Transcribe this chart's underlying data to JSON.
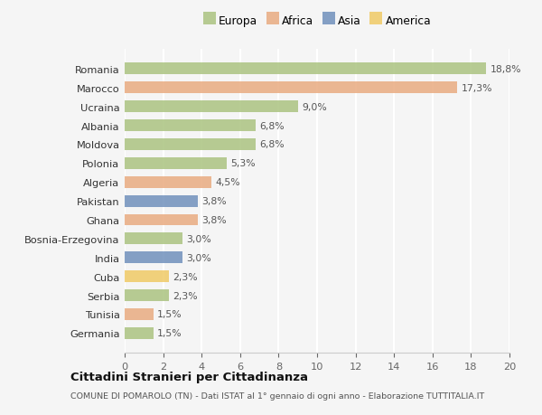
{
  "countries": [
    "Romania",
    "Marocco",
    "Ucraina",
    "Albania",
    "Moldova",
    "Polonia",
    "Algeria",
    "Pakistan",
    "Ghana",
    "Bosnia-Erzegovina",
    "India",
    "Cuba",
    "Serbia",
    "Tunisia",
    "Germania"
  ],
  "values": [
    18.8,
    17.3,
    9.0,
    6.8,
    6.8,
    5.3,
    4.5,
    3.8,
    3.8,
    3.0,
    3.0,
    2.3,
    2.3,
    1.5,
    1.5
  ],
  "labels": [
    "18,8%",
    "17,3%",
    "9,0%",
    "6,8%",
    "6,8%",
    "5,3%",
    "4,5%",
    "3,8%",
    "3,8%",
    "3,0%",
    "3,0%",
    "2,3%",
    "2,3%",
    "1,5%",
    "1,5%"
  ],
  "continents": [
    "Europa",
    "Africa",
    "Europa",
    "Europa",
    "Europa",
    "Europa",
    "Africa",
    "Asia",
    "Africa",
    "Europa",
    "Asia",
    "America",
    "Europa",
    "Africa",
    "Europa"
  ],
  "colors": {
    "Europa": "#a8c17c",
    "Africa": "#e8a87c",
    "Asia": "#6b8cba",
    "America": "#f0c860"
  },
  "legend_order": [
    "Europa",
    "Africa",
    "Asia",
    "America"
  ],
  "xlim": [
    0,
    20
  ],
  "xticks": [
    0,
    2,
    4,
    6,
    8,
    10,
    12,
    14,
    16,
    18,
    20
  ],
  "title": "Cittadini Stranieri per Cittadinanza",
  "subtitle": "COMUNE DI POMAROLO (TN) - Dati ISTAT al 1° gennaio di ogni anno - Elaborazione TUTTITALIA.IT",
  "background_color": "#f5f5f5",
  "grid_color": "#ffffff",
  "bar_alpha": 0.82,
  "bar_height": 0.62
}
